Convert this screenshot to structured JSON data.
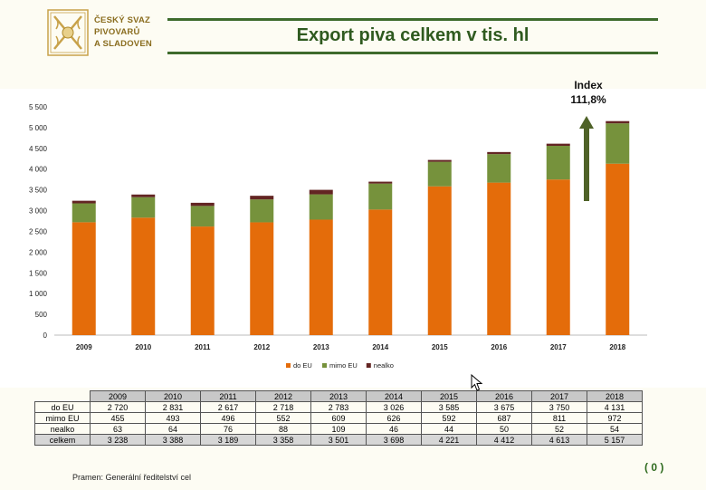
{
  "logo": {
    "line1": "ČESKÝ SVAZ",
    "line2": "PIVOVARŮ",
    "line3": "A SLADOVEN"
  },
  "title": "Export piva celkem v tis. hl",
  "index": {
    "label": "Index",
    "value": "111,8%"
  },
  "chart_data": {
    "type": "bar",
    "stacked": true,
    "title": "",
    "categories": [
      "2009",
      "2010",
      "2011",
      "2012",
      "2013",
      "2014",
      "2015",
      "2016",
      "2017",
      "2018"
    ],
    "series": [
      {
        "name": "do EU",
        "color": "#e46c0a",
        "values": [
          2720,
          2831,
          2617,
          2718,
          2783,
          3026,
          3585,
          3675,
          3750,
          4131
        ]
      },
      {
        "name": "mimo EU",
        "color": "#76923c",
        "values": [
          455,
          493,
          496,
          552,
          609,
          626,
          592,
          687,
          811,
          972
        ]
      },
      {
        "name": "nealko",
        "color": "#632523",
        "values": [
          63,
          64,
          76,
          88,
          109,
          46,
          44,
          50,
          52,
          54
        ]
      }
    ],
    "ylim": [
      0,
      5500
    ],
    "yticks": [
      "0",
      "500",
      "1 000",
      "1 500",
      "2 000",
      "2 500",
      "3 000",
      "3 500",
      "4 000",
      "4 500",
      "5 000",
      "5 500"
    ],
    "legend_position": "bottom",
    "grid": false
  },
  "table": {
    "years": [
      "2009",
      "2010",
      "2011",
      "2012",
      "2013",
      "2014",
      "2015",
      "2016",
      "2017",
      "2018"
    ],
    "rows": [
      {
        "label": "do EU",
        "values": [
          "2 720",
          "2 831",
          "2 617",
          "2 718",
          "2 783",
          "3 026",
          "3 585",
          "3 675",
          "3 750",
          "4 131"
        ]
      },
      {
        "label": "mimo EU",
        "values": [
          "455",
          "493",
          "496",
          "552",
          "609",
          "626",
          "592",
          "687",
          "811",
          "972"
        ]
      },
      {
        "label": "nealko",
        "values": [
          "63",
          "64",
          "76",
          "88",
          "109",
          "46",
          "44",
          "50",
          "52",
          "54"
        ]
      },
      {
        "label": "celkem",
        "values": [
          "3 238",
          "3 388",
          "3 189",
          "3 358",
          "3 501",
          "3 698",
          "4 221",
          "4 412",
          "4 613",
          "5 157"
        ]
      }
    ]
  },
  "source": "Pramen: Generální ředitelství cel",
  "page_number": "( 0 )",
  "colors": {
    "green_rule": "#3e6b2c",
    "title": "#2f5a1f",
    "arrow": "#4f6228"
  }
}
